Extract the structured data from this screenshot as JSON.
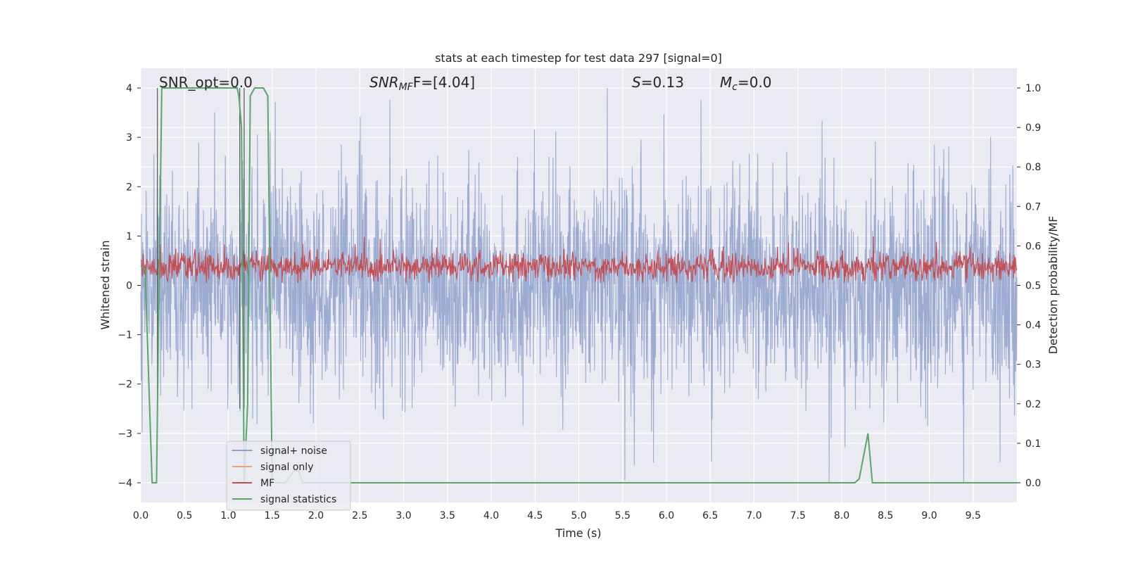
{
  "chart_data": {
    "type": "line",
    "title": "stats at each timestep for test data 297 [signal=0]",
    "xlabel": "Time (s)",
    "ylabel": "Whitened strain",
    "y2label": "Detection probability/MF",
    "xlim": [
      0.0,
      10.0
    ],
    "ylim": [
      -4.4,
      4.4
    ],
    "y2lim": [
      -0.05,
      1.05
    ],
    "grid": true,
    "legend_position": "lower-left",
    "xticks": [
      "0.0",
      "0.5",
      "1.0",
      "1.5",
      "2.0",
      "2.5",
      "3.0",
      "3.5",
      "4.0",
      "4.5",
      "5.0",
      "5.5",
      "6.0",
      "6.5",
      "7.0",
      "7.5",
      "8.0",
      "8.5",
      "9.0",
      "9.5"
    ],
    "yticks": [
      "4",
      "3",
      "2",
      "1",
      "0",
      "−1",
      "−2",
      "−3",
      "−4"
    ],
    "y2ticks": [
      "1.0",
      "0.9",
      "0.8",
      "0.7",
      "0.6",
      "0.5",
      "0.4",
      "0.3",
      "0.2",
      "0.1",
      "0.0"
    ],
    "annotations": {
      "snr_opt": "SNR_opt=0.0",
      "snr_mf_name": "SNR",
      "snr_mf_sub": "MF",
      "snr_mf_tail": "F=[4.04]",
      "s_name": "S",
      "s_val": "=0.13",
      "mc_name": "M",
      "mc_sub": "c",
      "mc_val": "=0.0"
    },
    "series": [
      {
        "name": "signal+ noise",
        "color": "#8da0cb",
        "note": "whitened strain noise, roughly ±2 with spikes to ±4"
      },
      {
        "name": "signal only",
        "color": "#e8a07e"
      },
      {
        "name": "MF",
        "color": "#c44e52",
        "note": "matched filter output, roughly 0.1–0.9 on strain axis"
      },
      {
        "name": "signal statistics",
        "color": "#55a868",
        "x": [
          0.0,
          0.05,
          0.1,
          0.13,
          0.18,
          0.2,
          0.24,
          0.3,
          0.5,
          1.1,
          1.12,
          1.15,
          1.18,
          1.22,
          1.25,
          1.3,
          1.4,
          1.45,
          1.5,
          1.55,
          1.65,
          1.75,
          1.8,
          1.85,
          2.0,
          8.15,
          8.2,
          8.3,
          8.35,
          10.0
        ],
        "y": [
          0.55,
          0.54,
          0.2,
          0.0,
          0.0,
          0.35,
          1.0,
          1.0,
          1.0,
          1.0,
          0.98,
          0.9,
          0.0,
          0.2,
          0.98,
          1.0,
          1.0,
          0.98,
          0.0,
          0.0,
          0.0,
          0.03,
          0.03,
          0.0,
          0.0,
          0.0,
          0.01,
          0.125,
          0.0,
          0.0
        ]
      }
    ],
    "vertical_markers_x": [
      0.19,
      1.13,
      1.18
    ]
  },
  "legend": [
    {
      "label": "signal+ noise",
      "color": "#8da0cb"
    },
    {
      "label": "signal only",
      "color": "#e8a07e"
    },
    {
      "label": "MF",
      "color": "#c44e52"
    },
    {
      "label": "signal statistics",
      "color": "#55a868"
    }
  ]
}
